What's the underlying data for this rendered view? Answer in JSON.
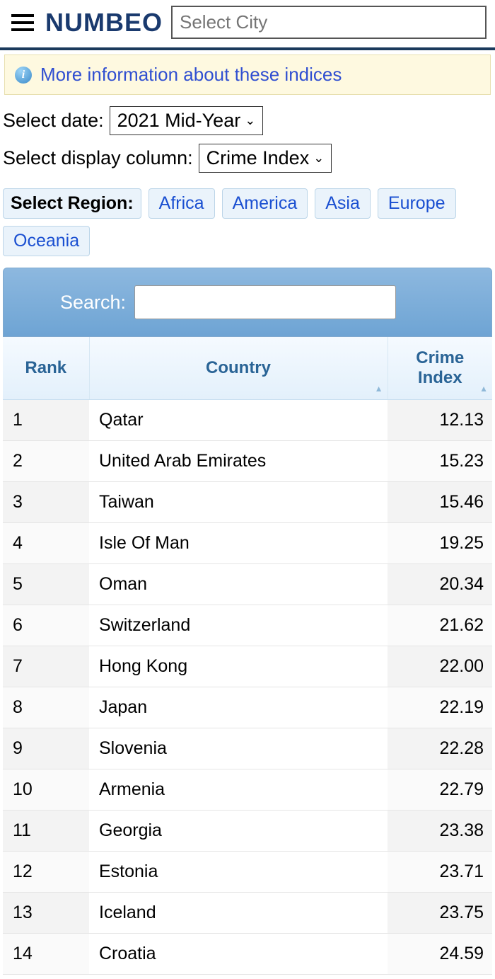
{
  "header": {
    "logo": "NUMBEO",
    "city_placeholder": "Select City"
  },
  "info": {
    "link_text": "More information about these indices"
  },
  "controls": {
    "date_label": "Select date:",
    "date_value": "2021 Mid-Year",
    "column_label": "Select display column:",
    "column_value": "Crime Index"
  },
  "regions": {
    "label": "Select Region:",
    "items": [
      "Africa",
      "America",
      "Asia",
      "Europe",
      "Oceania"
    ]
  },
  "table": {
    "search_label": "Search:",
    "columns": {
      "rank": "Rank",
      "country": "Country",
      "crime": "Crime Index"
    },
    "rows": [
      {
        "rank": "1",
        "country": "Qatar",
        "crime": "12.13"
      },
      {
        "rank": "2",
        "country": "United Arab Emirates",
        "crime": "15.23"
      },
      {
        "rank": "3",
        "country": "Taiwan",
        "crime": "15.46"
      },
      {
        "rank": "4",
        "country": "Isle Of Man",
        "crime": "19.25"
      },
      {
        "rank": "5",
        "country": "Oman",
        "crime": "20.34"
      },
      {
        "rank": "6",
        "country": "Switzerland",
        "crime": "21.62"
      },
      {
        "rank": "7",
        "country": "Hong Kong",
        "crime": "22.00"
      },
      {
        "rank": "8",
        "country": "Japan",
        "crime": "22.19"
      },
      {
        "rank": "9",
        "country": "Slovenia",
        "crime": "22.28"
      },
      {
        "rank": "10",
        "country": "Armenia",
        "crime": "22.79"
      },
      {
        "rank": "11",
        "country": "Georgia",
        "crime": "23.38"
      },
      {
        "rank": "12",
        "country": "Estonia",
        "crime": "23.71"
      },
      {
        "rank": "13",
        "country": "Iceland",
        "crime": "23.75"
      },
      {
        "rank": "14",
        "country": "Croatia",
        "crime": "24.59"
      }
    ]
  },
  "colors": {
    "brand": "#1a3a6e",
    "header_border": "#1a3a5c",
    "link": "#304fd1",
    "banner_bg": "#fef9e0",
    "banner_border": "#e8e0b0",
    "region_bg": "#eaf3fb",
    "region_border": "#bcd5e8",
    "searchbar_top": "#8db8df",
    "searchbar_bottom": "#6ea4d4",
    "th_text": "#2a6496",
    "th_bg_top": "#f5faff",
    "th_bg_bottom": "#e3f0fb",
    "row_odd_shade": "#f3f3f3",
    "row_even_shade": "#fafafa",
    "row_border": "#e5e5e5"
  }
}
